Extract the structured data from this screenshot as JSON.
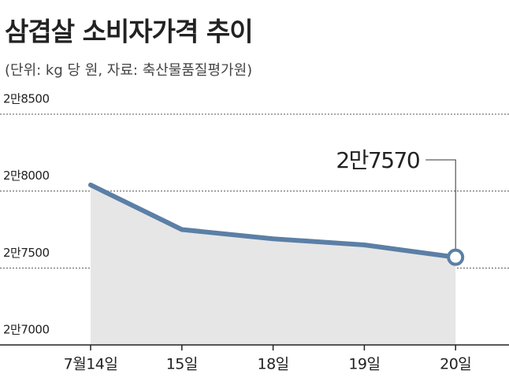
{
  "chart_data": {
    "type": "line",
    "title": "삼겹살 소비자가격 추이",
    "subtitle": "(단위: kg 당 원, 자료: 축산물품질평가원)",
    "categories": [
      "7월14일",
      "15일",
      "18일",
      "19일",
      "20일"
    ],
    "series": [
      {
        "name": "삼겹살 소비자가격",
        "color": "#5b7fa6",
        "area_color": "#e6e6e6",
        "values": [
          28040,
          27750,
          27690,
          27650,
          27570
        ],
        "value_labels": [
          null,
          null,
          null,
          null,
          "2만7570"
        ]
      }
    ],
    "ylim": [
      27000,
      28500
    ],
    "yticks": [
      {
        "value": 27000,
        "label": "2만7000"
      },
      {
        "value": 27500,
        "label": "2만7500"
      },
      {
        "value": 28000,
        "label": "2만8000"
      },
      {
        "value": 28500,
        "label": "2만8500"
      }
    ],
    "grid": true
  }
}
